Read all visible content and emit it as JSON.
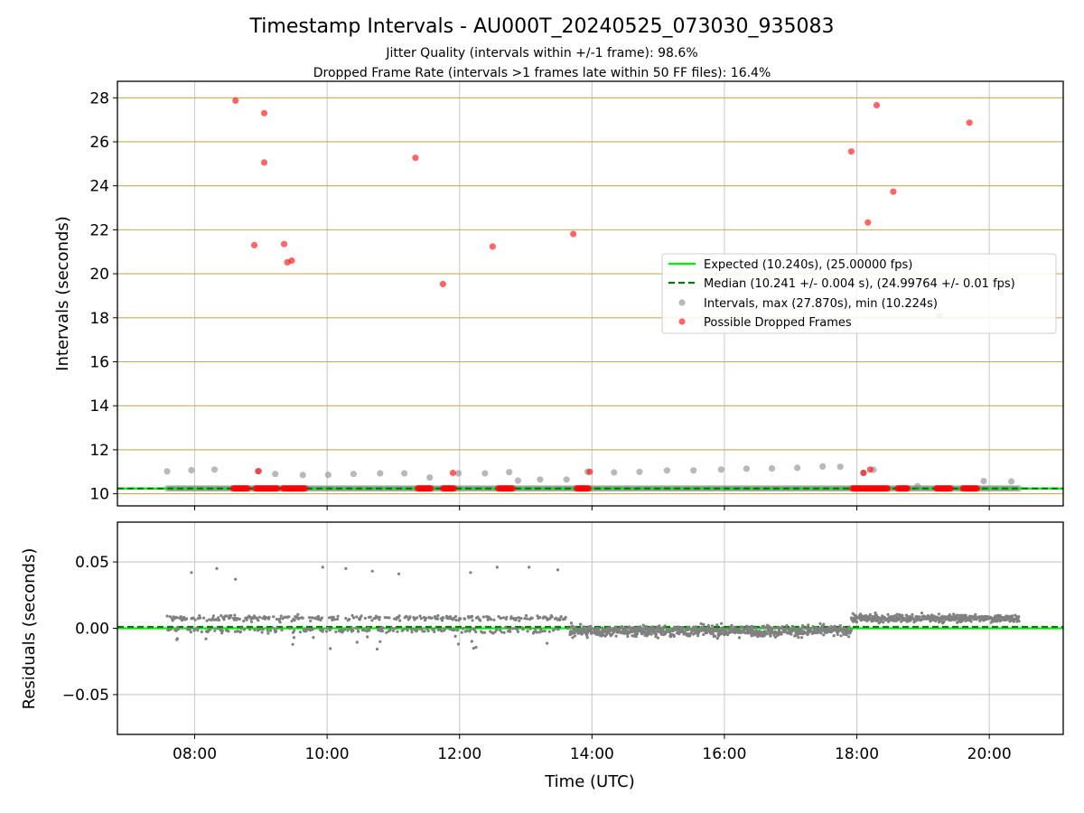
{
  "title": "Timestamp Intervals - AU000T_20240525_073030_935083",
  "subtitle_line1": "Jitter Quality (intervals within +/-1 frame): 98.6%",
  "subtitle_line2": "Dropped Frame Rate (intervals >1 frames late within 50 FF files): 16.4%",
  "colors": {
    "expected": "#00ee00",
    "median": "#007700",
    "intervals": "#808080",
    "dropped": "#ff0000",
    "hgrid_top": "#c8ab5a",
    "vgrid": "#cccccc",
    "grid_bottom": "#c8c8c8"
  },
  "chart_data": [
    {
      "type": "scatter",
      "panel": "intervals",
      "ylabel": "Intervals (seconds)",
      "ylim": [
        9.45,
        28.75
      ],
      "xlim": [
        "06:50",
        "21:07"
      ],
      "yticks": [
        10,
        12,
        14,
        16,
        18,
        20,
        22,
        24,
        26,
        28
      ],
      "ytick_labels": [
        "10",
        "12",
        "14",
        "16",
        "18",
        "20",
        "22",
        "24",
        "26",
        "28"
      ],
      "grid": true,
      "legend_position": "center-right",
      "legend": [
        {
          "label": "Expected (10.240s), (25.00000 fps)",
          "kind": "line"
        },
        {
          "label": "Median (10.241 +/- 0.004 s), (24.99764 +/- 0.01 fps)",
          "kind": "dashed"
        },
        {
          "label": "Intervals, max (27.870s), min (10.224s)",
          "kind": "gray-marker"
        },
        {
          "label": "Possible Dropped Frames",
          "kind": "red-marker"
        }
      ],
      "expected_value": 10.24,
      "median_value": 10.241,
      "baseline_x_range": [
        "07:35",
        "20:27"
      ],
      "interval_points": [
        [
          "07:35",
          11.02
        ],
        [
          "07:57",
          11.07
        ],
        [
          "08:18",
          11.1
        ],
        [
          "08:57",
          11.02
        ],
        [
          "09:13",
          10.9
        ],
        [
          "09:38",
          10.85
        ],
        [
          "10:01",
          10.86
        ],
        [
          "10:24",
          10.9
        ],
        [
          "10:48",
          10.93
        ],
        [
          "11:10",
          10.93
        ],
        [
          "11:33",
          10.74
        ],
        [
          "11:59",
          10.93
        ],
        [
          "12:23",
          10.93
        ],
        [
          "12:45",
          10.98
        ],
        [
          "12:53",
          10.6
        ],
        [
          "13:13",
          10.65
        ],
        [
          "13:37",
          10.65
        ],
        [
          "13:56",
          11.0
        ],
        [
          "14:20",
          10.97
        ],
        [
          "14:43",
          11.0
        ],
        [
          "15:08",
          11.06
        ],
        [
          "15:32",
          11.06
        ],
        [
          "15:57",
          11.1
        ],
        [
          "16:20",
          11.14
        ],
        [
          "16:43",
          11.15
        ],
        [
          "17:06",
          11.18
        ],
        [
          "17:29",
          11.24
        ],
        [
          "17:45",
          11.23
        ],
        [
          "18:06",
          10.95
        ],
        [
          "18:15",
          11.09
        ],
        [
          "18:55",
          10.34
        ],
        [
          "19:55",
          10.58
        ],
        [
          "20:20",
          10.56
        ],
        [
          "19:15",
          18.1
        ]
      ],
      "dropped_points": [
        [
          "08:37",
          27.87
        ],
        [
          "09:03",
          27.3
        ],
        [
          "09:03",
          25.06
        ],
        [
          "08:54",
          21.3
        ],
        [
          "09:21",
          21.35
        ],
        [
          "09:24",
          20.52
        ],
        [
          "09:28",
          20.6
        ],
        [
          "08:58",
          11.03
        ],
        [
          "11:20",
          25.27
        ],
        [
          "11:45",
          19.53
        ],
        [
          "11:54",
          10.95
        ],
        [
          "12:30",
          21.24
        ],
        [
          "13:43",
          21.81
        ],
        [
          "13:58",
          11.0
        ],
        [
          "17:55",
          25.56
        ],
        [
          "18:10",
          22.33
        ],
        [
          "18:18",
          27.66
        ],
        [
          "18:33",
          23.73
        ],
        [
          "19:42",
          26.87
        ],
        [
          "18:06",
          10.95
        ],
        [
          "18:12",
          11.1
        ]
      ],
      "dropped_clusters": [
        [
          "08:35",
          "08:48"
        ],
        [
          "08:55",
          "09:05"
        ],
        [
          "09:06",
          "09:15"
        ],
        [
          "09:20",
          "09:40"
        ],
        [
          "11:22",
          "11:34"
        ],
        [
          "11:45",
          "11:55"
        ],
        [
          "12:35",
          "12:48"
        ],
        [
          "13:46",
          "13:57"
        ],
        [
          "17:56",
          "18:28"
        ],
        [
          "18:37",
          "18:46"
        ],
        [
          "19:12",
          "19:25"
        ],
        [
          "19:36",
          "19:49"
        ]
      ]
    },
    {
      "type": "scatter",
      "panel": "residuals",
      "xlabel": "Time (UTC)",
      "ylabel": "Residuals (seconds)",
      "ylim": [
        -0.08,
        0.08
      ],
      "yticks": [
        0.05,
        0.0,
        -0.05
      ],
      "ytick_labels": [
        "0.05",
        "0.00",
        "−0.05"
      ],
      "xticks": [
        "08:00",
        "10:00",
        "12:00",
        "14:00",
        "16:00",
        "18:00",
        "20:00"
      ],
      "xtick_labels": [
        "08:00",
        "10:00",
        "12:00",
        "14:00",
        "16:00",
        "18:00",
        "20:00"
      ],
      "grid": true,
      "expected_value": 0.0,
      "median_value": 0.001,
      "data_range": [
        "07:35",
        "20:27"
      ],
      "outliers": [
        [
          "07:57",
          0.042
        ],
        [
          "08:20",
          0.045
        ],
        [
          "08:37",
          0.037
        ],
        [
          "09:56",
          0.046
        ],
        [
          "10:17",
          0.045
        ],
        [
          "10:41",
          0.043
        ],
        [
          "11:05",
          0.041
        ],
        [
          "12:10",
          0.042
        ],
        [
          "12:34",
          0.046
        ],
        [
          "13:03",
          0.046
        ],
        [
          "13:29",
          0.044
        ]
      ],
      "regimes": [
        {
          "from": "07:35",
          "to": "13:40",
          "pattern": "bands",
          "upper_band": 0.0075,
          "lower_band": -0.0015,
          "spread": 0.002
        },
        {
          "from": "13:40",
          "to": "17:55",
          "pattern": "centered",
          "center": -0.002,
          "spread": 0.004
        },
        {
          "from": "17:55",
          "to": "20:27",
          "pattern": "upper",
          "center": 0.0075,
          "spread": 0.0028
        }
      ]
    }
  ]
}
